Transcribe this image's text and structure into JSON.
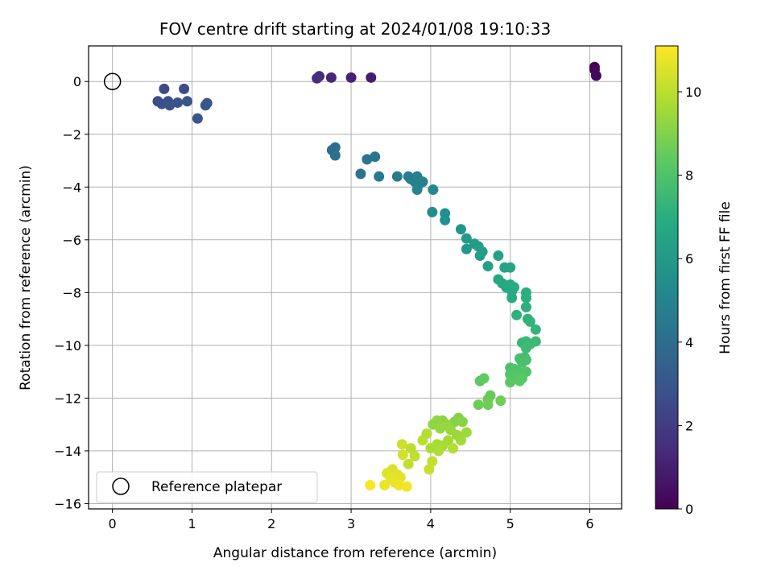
{
  "chart_data": {
    "type": "scatter",
    "title": "FOV centre drift starting at 2024/01/08 19:10:33",
    "xlabel": "Angular distance from reference (arcmin)",
    "ylabel": "Rotation from reference (arcmin)",
    "xlim": [
      -0.3,
      6.4
    ],
    "ylim": [
      -16.2,
      1.35
    ],
    "xticks": [
      0,
      1,
      2,
      3,
      4,
      5,
      6
    ],
    "yticks": [
      0,
      -2,
      -4,
      -6,
      -8,
      -10,
      -12,
      -14,
      -16
    ],
    "grid": true,
    "legend": {
      "placement": "bottom-left",
      "entries": [
        "Reference platepar"
      ]
    },
    "colorbar": {
      "label": "Hours from first FF file",
      "range": [
        0,
        11.1
      ],
      "ticks": [
        0,
        2,
        4,
        6,
        8,
        10
      ],
      "colormap": "viridis"
    },
    "reference_point": {
      "x": 0,
      "y": 0,
      "label": "Reference platepar"
    },
    "series": [
      {
        "points": [
          {
            "x": 6.06,
            "y": 0.55,
            "t": 0.0
          },
          {
            "x": 6.06,
            "y": 0.45,
            "t": 0.15
          },
          {
            "x": 6.08,
            "y": 0.22,
            "t": 0.3
          },
          {
            "x": 3.25,
            "y": 0.15,
            "t": 0.9
          },
          {
            "x": 3.0,
            "y": 0.15,
            "t": 1.1
          },
          {
            "x": 2.75,
            "y": 0.15,
            "t": 1.25
          },
          {
            "x": 2.6,
            "y": 0.2,
            "t": 1.4
          },
          {
            "x": 2.57,
            "y": 0.12,
            "t": 1.5
          },
          {
            "x": 0.65,
            "y": -0.28,
            "t": 2.5
          },
          {
            "x": 0.9,
            "y": -0.28,
            "t": 2.6
          },
          {
            "x": 0.57,
            "y": -0.75,
            "t": 2.65
          },
          {
            "x": 0.62,
            "y": -0.85,
            "t": 2.7
          },
          {
            "x": 0.7,
            "y": -0.75,
            "t": 2.75
          },
          {
            "x": 0.72,
            "y": -0.9,
            "t": 2.8
          },
          {
            "x": 0.82,
            "y": -0.8,
            "t": 2.85
          },
          {
            "x": 0.94,
            "y": -0.75,
            "t": 2.9
          },
          {
            "x": 1.07,
            "y": -1.4,
            "t": 2.95
          },
          {
            "x": 1.17,
            "y": -0.9,
            "t": 3.0
          },
          {
            "x": 1.19,
            "y": -0.82,
            "t": 3.05
          },
          {
            "x": 2.76,
            "y": -2.6,
            "t": 4.0
          },
          {
            "x": 2.8,
            "y": -2.5,
            "t": 4.05
          },
          {
            "x": 2.8,
            "y": -2.8,
            "t": 4.1
          },
          {
            "x": 3.12,
            "y": -3.5,
            "t": 4.3
          },
          {
            "x": 3.2,
            "y": -2.95,
            "t": 4.35
          },
          {
            "x": 3.3,
            "y": -2.85,
            "t": 4.4
          },
          {
            "x": 3.35,
            "y": -3.6,
            "t": 4.5
          },
          {
            "x": 3.58,
            "y": -3.6,
            "t": 4.6
          },
          {
            "x": 3.72,
            "y": -3.6,
            "t": 4.7
          },
          {
            "x": 3.75,
            "y": -3.7,
            "t": 4.75
          },
          {
            "x": 3.8,
            "y": -3.8,
            "t": 4.8
          },
          {
            "x": 3.83,
            "y": -3.6,
            "t": 4.85
          },
          {
            "x": 3.85,
            "y": -3.9,
            "t": 4.9
          },
          {
            "x": 3.9,
            "y": -3.8,
            "t": 4.95
          },
          {
            "x": 3.83,
            "y": -4.1,
            "t": 5.0
          },
          {
            "x": 4.03,
            "y": -4.1,
            "t": 5.2
          },
          {
            "x": 4.02,
            "y": -4.95,
            "t": 5.4
          },
          {
            "x": 4.18,
            "y": -5.0,
            "t": 5.5
          },
          {
            "x": 4.18,
            "y": -5.25,
            "t": 5.6
          },
          {
            "x": 4.38,
            "y": -5.6,
            "t": 5.8
          },
          {
            "x": 4.45,
            "y": -5.95,
            "t": 6.0
          },
          {
            "x": 4.45,
            "y": -6.35,
            "t": 6.05
          },
          {
            "x": 4.55,
            "y": -6.15,
            "t": 6.1
          },
          {
            "x": 4.6,
            "y": -6.25,
            "t": 6.15
          },
          {
            "x": 4.65,
            "y": -6.45,
            "t": 6.2
          },
          {
            "x": 4.62,
            "y": -6.6,
            "t": 6.25
          },
          {
            "x": 4.72,
            "y": -7.0,
            "t": 6.3
          },
          {
            "x": 4.85,
            "y": -6.6,
            "t": 6.4
          },
          {
            "x": 4.93,
            "y": -7.05,
            "t": 6.5
          },
          {
            "x": 5.0,
            "y": -7.05,
            "t": 6.55
          },
          {
            "x": 4.85,
            "y": -7.5,
            "t": 6.6
          },
          {
            "x": 4.9,
            "y": -7.65,
            "t": 6.65
          },
          {
            "x": 4.95,
            "y": -7.8,
            "t": 6.7
          },
          {
            "x": 5.0,
            "y": -7.7,
            "t": 6.75
          },
          {
            "x": 5.02,
            "y": -7.95,
            "t": 6.8
          },
          {
            "x": 5.05,
            "y": -7.8,
            "t": 6.85
          },
          {
            "x": 5.02,
            "y": -8.2,
            "t": 6.9
          },
          {
            "x": 5.2,
            "y": -8.0,
            "t": 7.0
          },
          {
            "x": 5.2,
            "y": -8.2,
            "t": 7.05
          },
          {
            "x": 5.2,
            "y": -8.55,
            "t": 7.1
          },
          {
            "x": 5.08,
            "y": -8.85,
            "t": 7.15
          },
          {
            "x": 5.22,
            "y": -9.0,
            "t": 7.2
          },
          {
            "x": 5.25,
            "y": -9.1,
            "t": 7.25
          },
          {
            "x": 5.32,
            "y": -9.4,
            "t": 7.3
          },
          {
            "x": 5.15,
            "y": -9.9,
            "t": 7.4
          },
          {
            "x": 5.2,
            "y": -9.85,
            "t": 7.45
          },
          {
            "x": 5.25,
            "y": -9.95,
            "t": 7.5
          },
          {
            "x": 5.32,
            "y": -9.85,
            "t": 7.55
          },
          {
            "x": 5.2,
            "y": -10.1,
            "t": 7.6
          },
          {
            "x": 5.18,
            "y": -10.45,
            "t": 7.7
          },
          {
            "x": 5.12,
            "y": -10.5,
            "t": 7.75
          },
          {
            "x": 5.2,
            "y": -10.55,
            "t": 7.8
          },
          {
            "x": 5.15,
            "y": -10.65,
            "t": 7.85
          },
          {
            "x": 5.0,
            "y": -10.85,
            "t": 7.9
          },
          {
            "x": 5.05,
            "y": -10.9,
            "t": 7.95
          },
          {
            "x": 5.1,
            "y": -11.0,
            "t": 8.0
          },
          {
            "x": 5.2,
            "y": -11.0,
            "t": 8.05
          },
          {
            "x": 5.0,
            "y": -11.1,
            "t": 8.1
          },
          {
            "x": 5.1,
            "y": -11.2,
            "t": 8.15
          },
          {
            "x": 5.15,
            "y": -11.25,
            "t": 8.2
          },
          {
            "x": 5.0,
            "y": -11.4,
            "t": 8.25
          },
          {
            "x": 5.12,
            "y": -11.35,
            "t": 8.3
          },
          {
            "x": 4.62,
            "y": -11.35,
            "t": 8.35
          },
          {
            "x": 4.67,
            "y": -11.25,
            "t": 8.4
          },
          {
            "x": 4.75,
            "y": -11.9,
            "t": 8.5
          },
          {
            "x": 4.72,
            "y": -12.05,
            "t": 8.55
          },
          {
            "x": 4.6,
            "y": -12.25,
            "t": 8.6
          },
          {
            "x": 4.72,
            "y": -12.25,
            "t": 8.65
          },
          {
            "x": 4.88,
            "y": -12.1,
            "t": 8.7
          },
          {
            "x": 4.35,
            "y": -12.75,
            "t": 9.0
          },
          {
            "x": 4.3,
            "y": -12.9,
            "t": 9.05
          },
          {
            "x": 4.4,
            "y": -12.9,
            "t": 9.1
          },
          {
            "x": 4.15,
            "y": -12.85,
            "t": 9.15
          },
          {
            "x": 4.08,
            "y": -12.85,
            "t": 9.2
          },
          {
            "x": 4.03,
            "y": -13.0,
            "t": 9.25
          },
          {
            "x": 4.2,
            "y": -13.0,
            "t": 9.3
          },
          {
            "x": 4.12,
            "y": -13.15,
            "t": 9.35
          },
          {
            "x": 4.25,
            "y": -13.2,
            "t": 9.4
          },
          {
            "x": 4.33,
            "y": -13.4,
            "t": 9.45
          },
          {
            "x": 4.45,
            "y": -13.3,
            "t": 9.5
          },
          {
            "x": 4.38,
            "y": -13.6,
            "t": 9.55
          },
          {
            "x": 4.22,
            "y": -13.6,
            "t": 9.6
          },
          {
            "x": 4.15,
            "y": -13.8,
            "t": 9.65
          },
          {
            "x": 4.08,
            "y": -13.75,
            "t": 9.7
          },
          {
            "x": 4.0,
            "y": -13.9,
            "t": 9.75
          },
          {
            "x": 4.1,
            "y": -14.0,
            "t": 9.8
          },
          {
            "x": 4.28,
            "y": -13.9,
            "t": 9.85
          },
          {
            "x": 3.95,
            "y": -13.35,
            "t": 9.9
          },
          {
            "x": 3.9,
            "y": -13.6,
            "t": 9.95
          },
          {
            "x": 3.75,
            "y": -13.9,
            "t": 10.0
          },
          {
            "x": 3.8,
            "y": -14.2,
            "t": 10.05
          },
          {
            "x": 3.72,
            "y": -14.5,
            "t": 10.1
          },
          {
            "x": 4.02,
            "y": -14.4,
            "t": 10.15
          },
          {
            "x": 3.98,
            "y": -14.7,
            "t": 10.2
          },
          {
            "x": 3.64,
            "y": -13.75,
            "t": 10.3
          },
          {
            "x": 3.65,
            "y": -14.15,
            "t": 10.35
          },
          {
            "x": 3.52,
            "y": -14.7,
            "t": 10.5
          },
          {
            "x": 3.45,
            "y": -14.85,
            "t": 10.55
          },
          {
            "x": 3.58,
            "y": -14.9,
            "t": 10.6
          },
          {
            "x": 3.62,
            "y": -15.0,
            "t": 10.65
          },
          {
            "x": 3.5,
            "y": -15.05,
            "t": 10.7
          },
          {
            "x": 3.55,
            "y": -15.2,
            "t": 10.75
          },
          {
            "x": 3.42,
            "y": -15.3,
            "t": 10.8
          },
          {
            "x": 3.6,
            "y": -15.3,
            "t": 10.85
          },
          {
            "x": 3.7,
            "y": -15.35,
            "t": 10.9
          },
          {
            "x": 3.24,
            "y": -15.3,
            "t": 11.0
          }
        ]
      }
    ]
  }
}
